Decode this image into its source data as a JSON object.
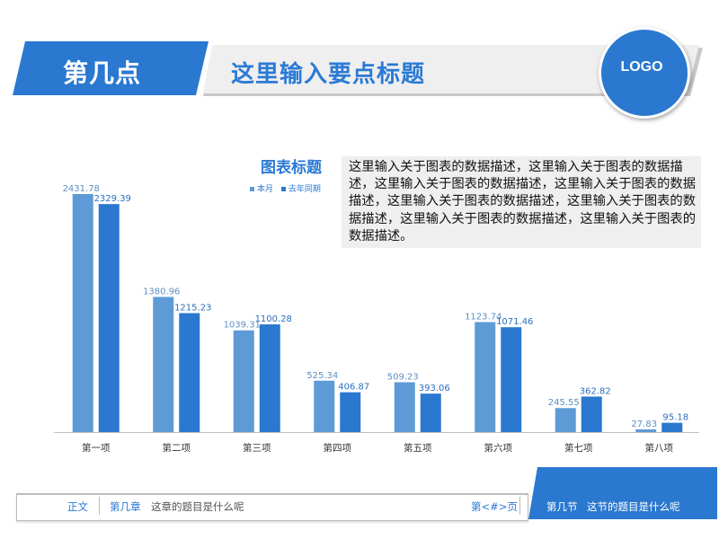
{
  "header": {
    "section_label": "第几点",
    "title": "这里输入要点标题",
    "logo": "LOGO"
  },
  "colors": {
    "accent": "#2a78d0",
    "series_this_month": "#5e9bd6",
    "series_last_year": "#2a78d0",
    "band": "#efefef"
  },
  "description": "这里输入关于图表的数据描述，这里输入关于图表的数据描述，这里输入关于图表的数据描述，这里输入关于图表的数据描述，这里输入关于图表的数据描述，这里输入关于图表的数据描述，这里输入关于图表的数据描述，这里输入关于图表的数据描述。",
  "chart_data": {
    "type": "bar",
    "title": "图表标题",
    "categories": [
      "第一项",
      "第二项",
      "第三项",
      "第四项",
      "第五项",
      "第六项",
      "第七项",
      "第八项"
    ],
    "series": [
      {
        "name": "本月",
        "values": [
          2431.78,
          1380.96,
          1039.31,
          525.34,
          509.23,
          1123.74,
          245.55,
          27.83
        ]
      },
      {
        "name": "去年同期",
        "values": [
          2329.39,
          1215.23,
          1100.28,
          406.87,
          393.06,
          1071.46,
          362.82,
          95.18
        ]
      }
    ],
    "xlabel": "",
    "ylabel": "",
    "ylim": [
      0,
      2431.78
    ],
    "grid": false,
    "legend_position": "top-right"
  },
  "footer": {
    "body_label": "正文",
    "chapter_label": "第几章",
    "chapter_title": "这章的题目是什么呢",
    "page_label": "第<#>页",
    "node_label": "第几节",
    "node_title": "这节的题目是什么呢"
  }
}
